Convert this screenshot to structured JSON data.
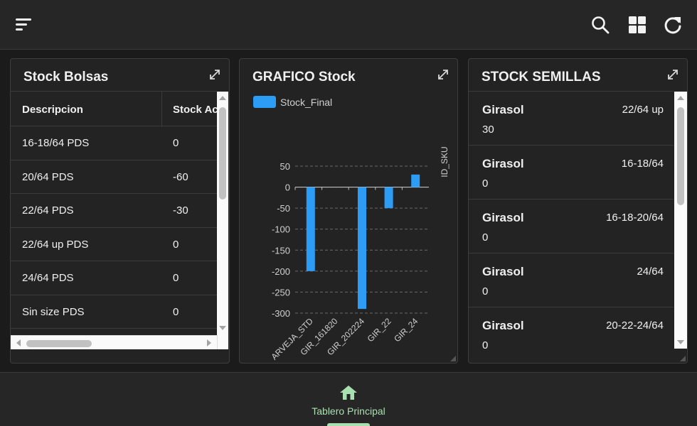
{
  "header": {
    "menu_icon": "menu-icon",
    "search_icon": "search-icon",
    "grid_icon": "grid-icon",
    "refresh_icon": "refresh-icon"
  },
  "panels": {
    "stock_bolsas": {
      "title": "Stock Bolsas",
      "columns": [
        "Descripcion",
        "Stock Ac"
      ],
      "rows": [
        [
          "16-18/64 PDS",
          "0"
        ],
        [
          "20/64 PDS",
          "-60"
        ],
        [
          "22/64 PDS",
          "-30"
        ],
        [
          "22/64 up PDS",
          "0"
        ],
        [
          "24/64 PDS",
          "0"
        ],
        [
          "Sin size PDS",
          "0"
        ]
      ]
    },
    "grafico": {
      "title": "GRAFICO Stock"
    },
    "semillas": {
      "title": "STOCK SEMILLAS",
      "items": [
        {
          "name": "Girasol",
          "size": "22/64 up",
          "value": "30"
        },
        {
          "name": "Girasol",
          "size": "16-18/64",
          "value": "0"
        },
        {
          "name": "Girasol",
          "size": "16-18-20/64",
          "value": "0"
        },
        {
          "name": "Girasol",
          "size": "24/64",
          "value": "0"
        },
        {
          "name": "Girasol",
          "size": "20-22-24/64",
          "value": "0"
        }
      ]
    }
  },
  "chart_data": {
    "type": "bar",
    "categories": [
      "ARVEJA_STD",
      "GIR_161820",
      "GIR_202224",
      "GIR_22",
      "GIR_24"
    ],
    "series": [
      {
        "name": "Stock_Final",
        "values": [
          -200,
          0,
          -290,
          -50,
          30
        ]
      }
    ],
    "y_ticks": [
      "50",
      "0",
      "-50",
      "-100",
      "-150",
      "-200",
      "-250",
      "-300"
    ],
    "ylim": [
      -300,
      50
    ],
    "ylabel": "ID_SKU",
    "xlabel": "",
    "grid": true,
    "legend_position": "top-left",
    "bar_color": "#2d9cf5"
  },
  "bottom_nav": {
    "home_icon": "home-icon",
    "label": "Tablero Principal",
    "accent": "#a8e0b0"
  },
  "colors": {
    "background": "#1b1b1b",
    "panel": "#232323",
    "bar": "#2d9cf5"
  }
}
